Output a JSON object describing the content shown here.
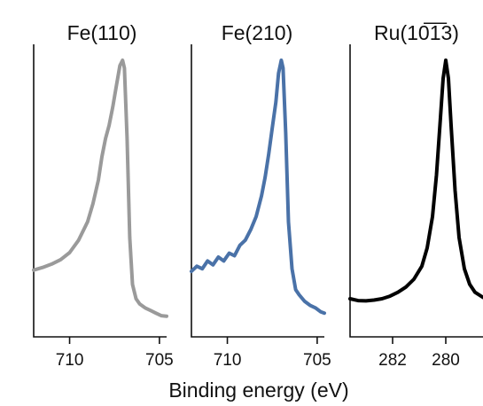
{
  "chart_data": [
    {
      "type": "line",
      "title": "Fe(110)",
      "xlim": [
        712.0,
        704.6
      ],
      "ylim": [
        0,
        1
      ],
      "xticks": [
        "710",
        "705"
      ],
      "xtick_values": [
        710,
        705
      ],
      "color": "#9a9a9a",
      "series": [
        {
          "x": [
            712.0,
            711.5,
            711.0,
            710.5,
            710.0,
            709.5,
            709.0,
            708.7,
            708.4,
            708.2,
            708.0,
            707.8,
            707.6,
            707.4,
            707.2,
            707.05,
            706.95,
            706.8,
            706.65,
            706.5,
            706.3,
            706.1,
            705.8,
            705.5,
            705.2,
            704.9,
            704.6
          ],
          "y": [
            0.195,
            0.205,
            0.218,
            0.235,
            0.262,
            0.31,
            0.38,
            0.45,
            0.54,
            0.63,
            0.7,
            0.75,
            0.82,
            0.9,
            0.98,
            1.0,
            0.97,
            0.7,
            0.32,
            0.14,
            0.085,
            0.065,
            0.05,
            0.04,
            0.03,
            0.02,
            0.018
          ]
        }
      ]
    },
    {
      "type": "line",
      "title": "Fe(210)",
      "xlim": [
        712.0,
        704.6
      ],
      "ylim": [
        0,
        1
      ],
      "xticks": [
        "710",
        "705"
      ],
      "xtick_values": [
        710,
        705
      ],
      "color": "#4a72a8",
      "series": [
        {
          "x": [
            712.0,
            711.7,
            711.4,
            711.1,
            710.8,
            710.5,
            710.2,
            709.9,
            709.6,
            709.3,
            709.0,
            708.7,
            708.4,
            708.1,
            707.9,
            707.7,
            707.5,
            707.3,
            707.15,
            707.0,
            706.9,
            706.75,
            706.6,
            706.4,
            706.2,
            706.0,
            705.7,
            705.4,
            705.1,
            704.8,
            704.6
          ],
          "y": [
            0.19,
            0.21,
            0.2,
            0.23,
            0.215,
            0.245,
            0.23,
            0.26,
            0.25,
            0.29,
            0.31,
            0.35,
            0.4,
            0.48,
            0.55,
            0.64,
            0.74,
            0.84,
            0.95,
            1.0,
            0.97,
            0.72,
            0.38,
            0.2,
            0.12,
            0.1,
            0.075,
            0.06,
            0.05,
            0.035,
            0.03
          ]
        }
      ]
    },
    {
      "type": "line",
      "title": "Ru(10̅1̅3)",
      "xlim": [
        283.6,
        278.6
      ],
      "ylim": [
        0,
        1
      ],
      "xticks": [
        "282",
        "280"
      ],
      "xtick_values": [
        282,
        280
      ],
      "color": "#000000",
      "series": [
        {
          "x": [
            283.6,
            283.3,
            283.0,
            282.7,
            282.4,
            282.1,
            281.8,
            281.5,
            281.2,
            280.9,
            280.7,
            280.5,
            280.35,
            280.2,
            280.1,
            280.0,
            279.9,
            279.8,
            279.65,
            279.5,
            279.3,
            279.1,
            278.9,
            278.6
          ],
          "y": [
            0.085,
            0.078,
            0.077,
            0.08,
            0.085,
            0.095,
            0.11,
            0.13,
            0.16,
            0.21,
            0.28,
            0.4,
            0.56,
            0.78,
            0.93,
            1.0,
            0.93,
            0.75,
            0.5,
            0.32,
            0.2,
            0.14,
            0.11,
            0.09
          ]
        }
      ]
    }
  ],
  "xlabel": "Binding energy (eV)"
}
